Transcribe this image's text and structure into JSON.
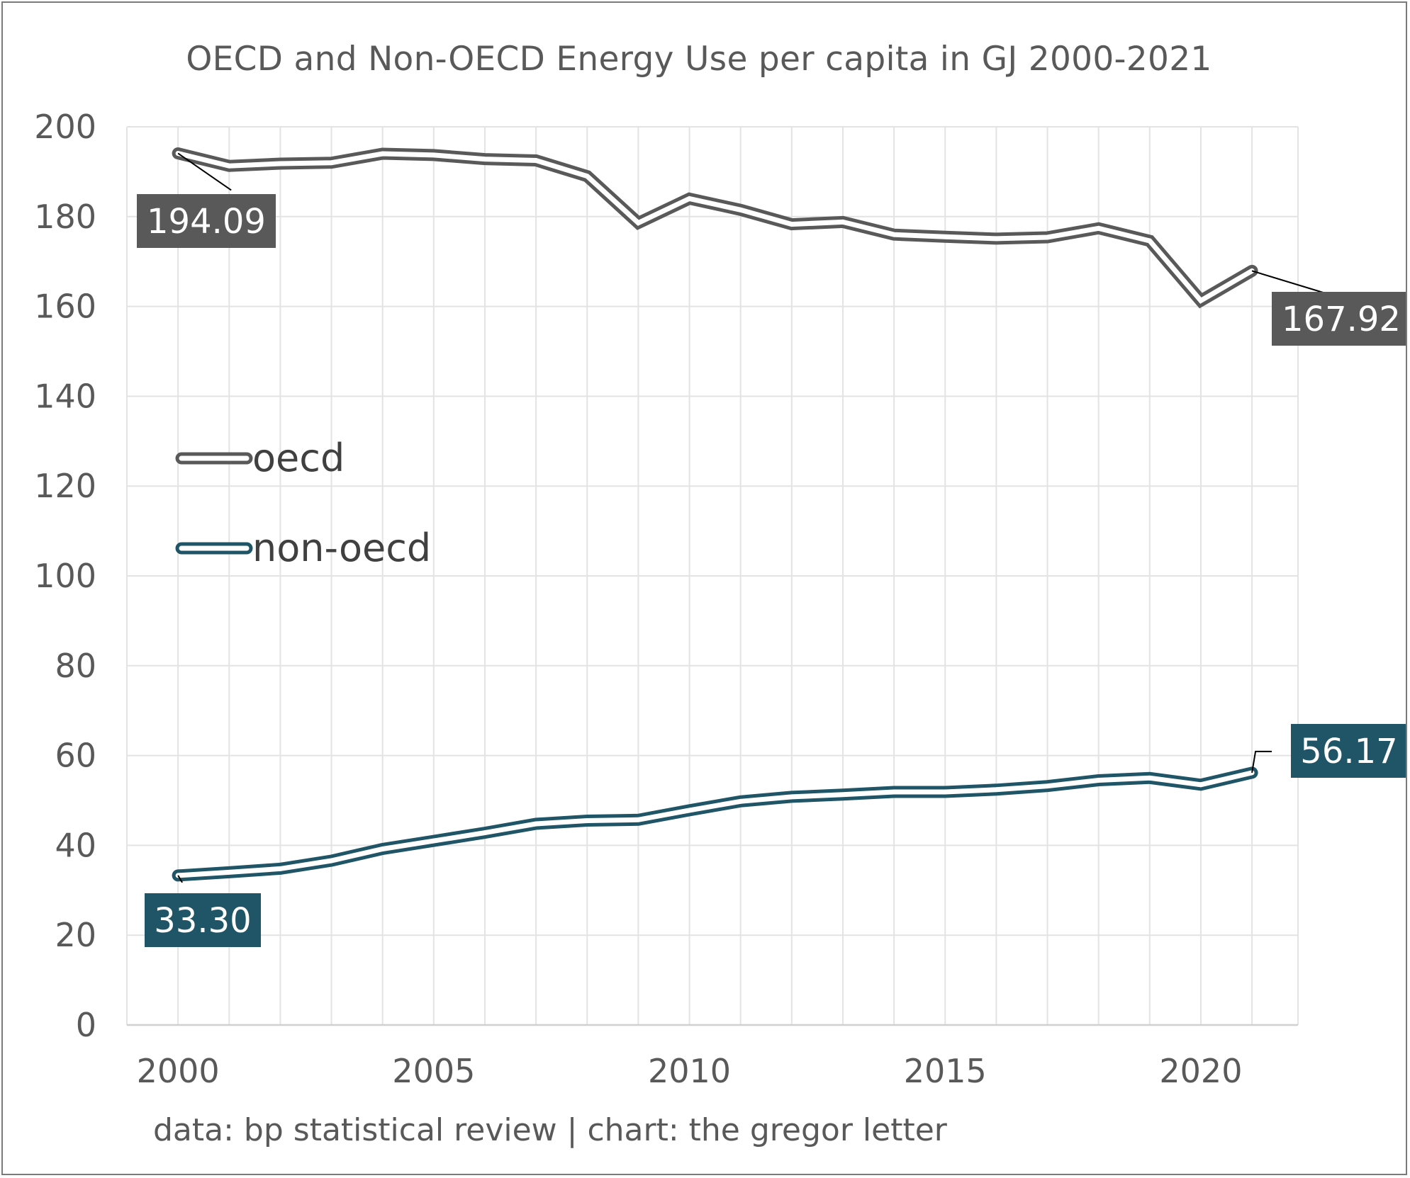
{
  "chart_data": {
    "type": "line",
    "title": "OECD and Non-OECD Energy Use per capita in GJ 2000-2021",
    "credit": "data: bp statistical review | chart: the gregor letter",
    "x": [
      2000,
      2001,
      2002,
      2003,
      2004,
      2005,
      2006,
      2007,
      2008,
      2009,
      2010,
      2011,
      2012,
      2013,
      2014,
      2015,
      2016,
      2017,
      2018,
      2019,
      2020,
      2021
    ],
    "xticks": [
      "2000",
      "2005",
      "2010",
      "2015",
      "2020"
    ],
    "yticks": [
      "0",
      "20",
      "40",
      "60",
      "80",
      "100",
      "120",
      "140",
      "160",
      "180",
      "200"
    ],
    "ylim": [
      0,
      200
    ],
    "xlim": [
      1999,
      2021.9
    ],
    "grid": true,
    "legend_placement": "left, inside plot",
    "series": [
      {
        "name": "oecd",
        "color": "#595959",
        "values": [
          194.09,
          191.3,
          191.8,
          192.0,
          194.0,
          193.7,
          192.8,
          192.5,
          189.0,
          178.6,
          184.0,
          181.5,
          178.3,
          178.8,
          176.0,
          175.5,
          175.1,
          175.4,
          177.4,
          174.6,
          161.3,
          167.92
        ],
        "first_label": "194.09",
        "last_label": "167.92"
      },
      {
        "name": "non-oecd",
        "color": "#1f5566",
        "values": [
          33.3,
          34.0,
          34.8,
          36.6,
          39.2,
          41.0,
          42.8,
          44.8,
          45.5,
          45.7,
          47.8,
          49.8,
          50.8,
          51.3,
          51.9,
          51.9,
          52.4,
          53.2,
          54.5,
          55.0,
          53.5,
          56.17
        ],
        "first_label": "33.30",
        "last_label": "56.17"
      }
    ]
  }
}
